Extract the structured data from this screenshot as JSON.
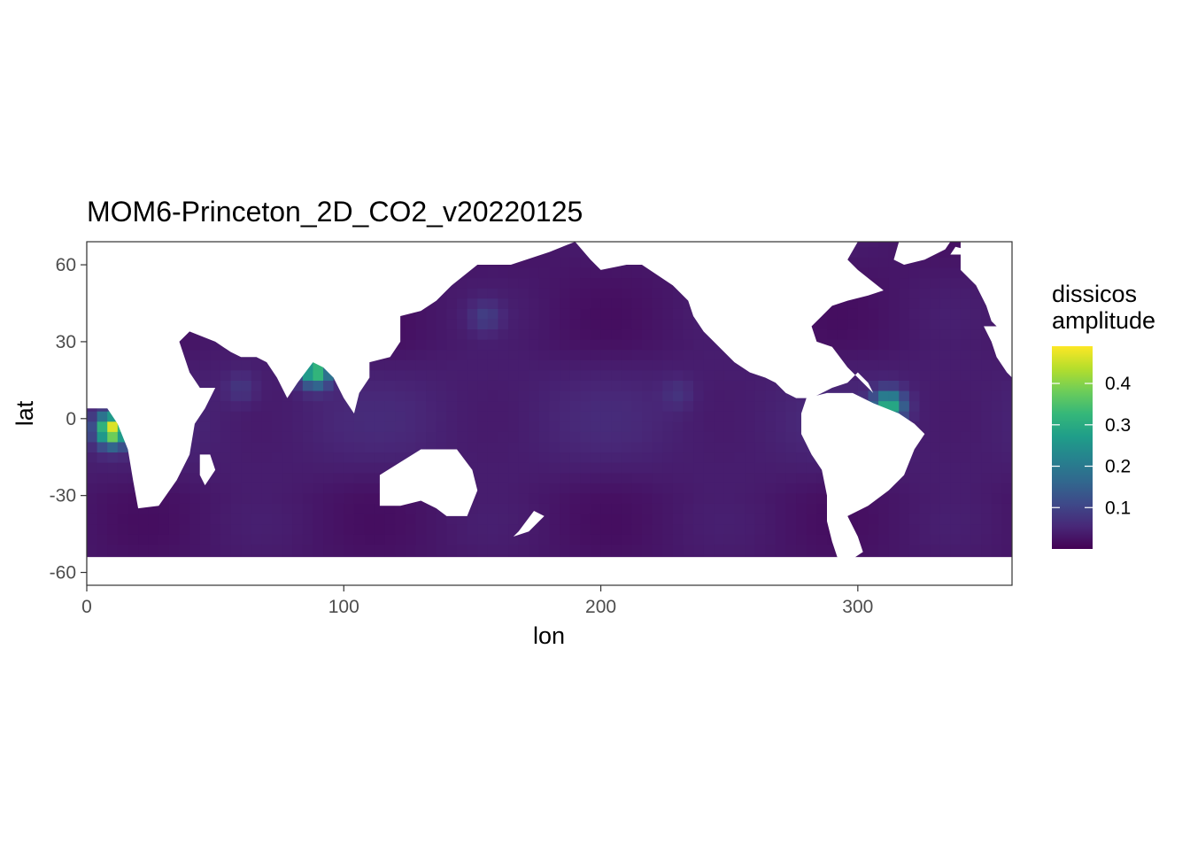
{
  "chart_data": {
    "type": "heatmap",
    "title": "MOM6-Princeton_2D_CO2_v20220125",
    "xlabel": "lon",
    "ylabel": "lat",
    "xlim": [
      0,
      360
    ],
    "ylim": [
      -65,
      69
    ],
    "x_ticks": [
      0,
      100,
      200,
      300
    ],
    "y_ticks": [
      -60,
      -30,
      0,
      30,
      60
    ],
    "grid": true,
    "colormap": "viridis",
    "colors": {
      "viridis": [
        "#440154",
        "#482878",
        "#3E4989",
        "#31688E",
        "#26828E",
        "#1F9E89",
        "#35B779",
        "#6DCD59",
        "#B4DE2C",
        "#FDE725"
      ],
      "land": "#ffffff",
      "panel_border": "#333333",
      "grid_major": "#ebebeb",
      "grid_minor": "#f5f5f5"
    },
    "legend": {
      "title_lines": [
        "dissicos",
        "amplitude"
      ],
      "placement": "right",
      "range": [
        0.0,
        0.49
      ],
      "ticks": [
        0.1,
        0.2,
        0.3,
        0.4
      ]
    },
    "hotspots": [
      {
        "lon": 10,
        "lat": -4,
        "value": 0.45
      },
      {
        "lon": 312,
        "lat": 5,
        "value": 0.3
      },
      {
        "lon": 89,
        "lat": 19,
        "value": 0.35
      },
      {
        "lon": 155,
        "lat": 40,
        "value": 0.08
      },
      {
        "lon": 60,
        "lat": 12,
        "value": 0.07
      },
      {
        "lon": 230,
        "lat": 10,
        "value": 0.06
      }
    ]
  }
}
